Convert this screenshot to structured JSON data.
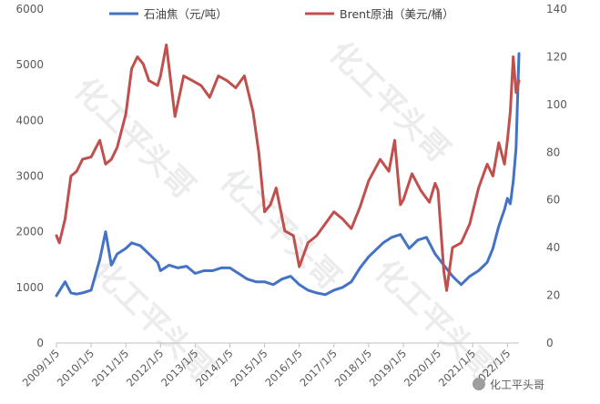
{
  "chart_data": {
    "type": "line",
    "title": "",
    "xlabel": "",
    "x_ticks": [
      "2009/1/5",
      "2010/1/5",
      "2011/1/5",
      "2012/1/5",
      "2013/1/5",
      "2014/1/5",
      "2015/1/5",
      "2016/1/5",
      "2017/1/5",
      "2018/1/5",
      "2019/1/5",
      "2020/1/5",
      "2021/1/5",
      "2022/1/5"
    ],
    "y_left": {
      "label": "",
      "min": 0,
      "max": 6000,
      "ticks": [
        0,
        1000,
        2000,
        3000,
        4000,
        5000,
        6000
      ]
    },
    "y_right": {
      "label": "",
      "min": 0,
      "max": 140,
      "ticks": [
        0,
        20,
        40,
        60,
        80,
        100,
        120,
        140
      ]
    },
    "legend_position": "top",
    "grid": false,
    "series": [
      {
        "name": "石油焦（元/吨）",
        "axis": "left",
        "color": "#4472C4",
        "x": [
          "2009/1/5",
          "2009/4/5",
          "2009/6/5",
          "2009/8/5",
          "2009/10/5",
          "2010/1/5",
          "2010/4/5",
          "2010/6/5",
          "2010/8/5",
          "2010/10/5",
          "2011/1/5",
          "2011/3/5",
          "2011/6/5",
          "2011/9/5",
          "2011/12/5",
          "2012/1/5",
          "2012/4/5",
          "2012/7/5",
          "2012/10/5",
          "2013/1/5",
          "2013/4/5",
          "2013/7/5",
          "2013/10/5",
          "2014/1/5",
          "2014/4/5",
          "2014/7/5",
          "2014/10/5",
          "2015/1/5",
          "2015/4/5",
          "2015/7/5",
          "2015/10/5",
          "2016/1/5",
          "2016/4/5",
          "2016/7/5",
          "2016/10/5",
          "2017/1/5",
          "2017/4/5",
          "2017/7/5",
          "2017/10/5",
          "2018/1/5",
          "2018/3/5",
          "2018/6/5",
          "2018/9/5",
          "2018/12/5",
          "2019/3/5",
          "2019/6/5",
          "2019/9/5",
          "2019/12/5",
          "2020/3/5",
          "2020/6/5",
          "2020/9/5",
          "2020/12/5",
          "2021/3/5",
          "2021/6/5",
          "2021/8/5",
          "2021/9/5",
          "2021/10/5",
          "2021/12/5",
          "2022/1/5",
          "2022/2/5",
          "2022/3/5",
          "2022/4/5",
          "2022/5/5"
        ],
        "values": [
          850,
          1100,
          900,
          880,
          900,
          950,
          1500,
          2000,
          1400,
          1600,
          1700,
          1800,
          1750,
          1600,
          1450,
          1300,
          1400,
          1350,
          1380,
          1250,
          1300,
          1300,
          1350,
          1350,
          1250,
          1150,
          1100,
          1100,
          1050,
          1150,
          1200,
          1050,
          950,
          900,
          870,
          950,
          1000,
          1100,
          1350,
          1550,
          1650,
          1800,
          1900,
          1950,
          1700,
          1850,
          1900,
          1600,
          1400,
          1200,
          1050,
          1200,
          1300,
          1450,
          1700,
          1900,
          2100,
          2400,
          2600,
          2500,
          2900,
          3500,
          5200
        ]
      },
      {
        "name": "Brent原油（美元/桶）",
        "axis": "right",
        "color": "#C0504D",
        "x": [
          "2009/1/5",
          "2009/2/5",
          "2009/4/5",
          "2009/6/5",
          "2009/8/5",
          "2009/10/5",
          "2010/1/5",
          "2010/4/5",
          "2010/6/5",
          "2010/8/5",
          "2010/10/5",
          "2011/1/5",
          "2011/3/5",
          "2011/5/5",
          "2011/7/5",
          "2011/9/5",
          "2011/12/5",
          "2012/1/5",
          "2012/3/5",
          "2012/6/5",
          "2012/9/5",
          "2012/12/5",
          "2013/3/5",
          "2013/6/5",
          "2013/9/5",
          "2013/12/5",
          "2014/3/5",
          "2014/6/5",
          "2014/9/5",
          "2014/11/5",
          "2015/1/5",
          "2015/3/5",
          "2015/5/5",
          "2015/8/5",
          "2015/11/5",
          "2016/1/5",
          "2016/4/5",
          "2016/7/5",
          "2016/10/5",
          "2017/1/5",
          "2017/4/5",
          "2017/7/5",
          "2017/10/5",
          "2018/1/5",
          "2018/5/5",
          "2018/8/5",
          "2018/10/5",
          "2018/12/5",
          "2019/1/5",
          "2019/4/5",
          "2019/7/5",
          "2019/10/5",
          "2019/12/5",
          "2020/1/5",
          "2020/3/5",
          "2020/4/5",
          "2020/6/5",
          "2020/9/5",
          "2020/12/5",
          "2021/3/5",
          "2021/6/5",
          "2021/8/5",
          "2021/10/5",
          "2021/12/5",
          "2022/1/5",
          "2022/2/5",
          "2022/3/5",
          "2022/4/5",
          "2022/5/5"
        ],
        "values": [
          45,
          42,
          52,
          70,
          72,
          77,
          78,
          85,
          75,
          77,
          82,
          96,
          115,
          120,
          117,
          110,
          108,
          112,
          125,
          95,
          112,
          110,
          108,
          103,
          112,
          110,
          107,
          112,
          97,
          80,
          55,
          58,
          65,
          47,
          45,
          32,
          42,
          45,
          50,
          55,
          52,
          48,
          57,
          68,
          77,
          72,
          85,
          58,
          60,
          71,
          64,
          59,
          67,
          64,
          30,
          22,
          40,
          42,
          50,
          65,
          75,
          70,
          84,
          75,
          85,
          97,
          120,
          105,
          110
        ]
      }
    ]
  },
  "watermark": {
    "text": "化工平头哥",
    "tag": "化工平头哥"
  }
}
